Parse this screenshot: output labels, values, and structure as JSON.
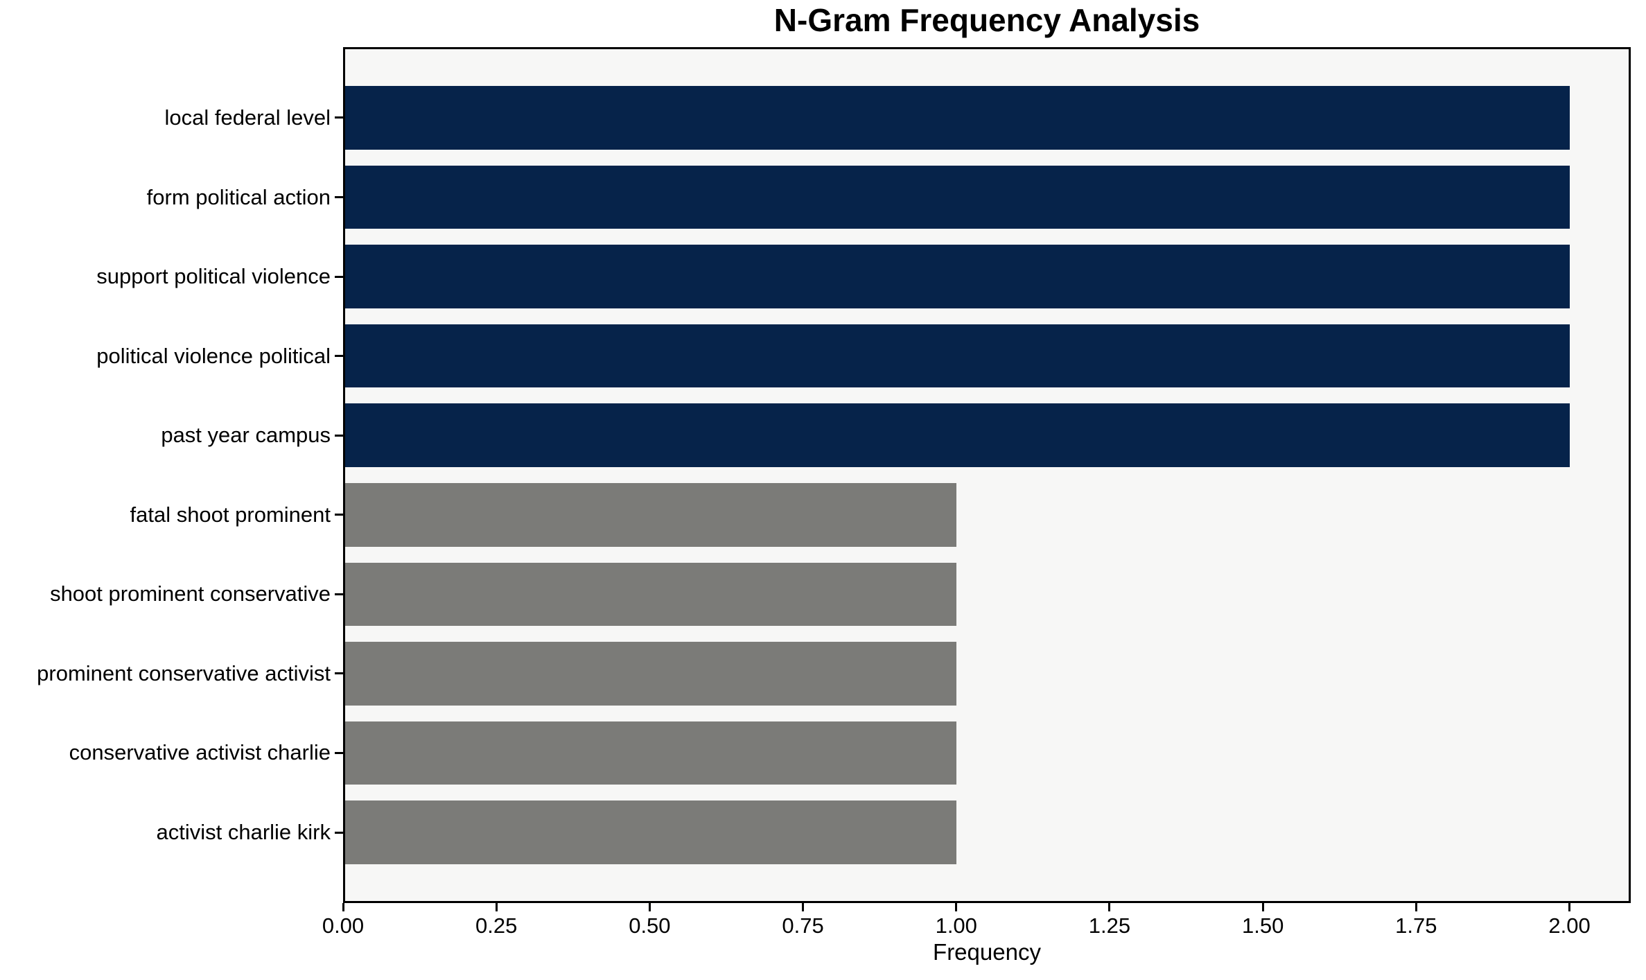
{
  "chart_data": {
    "type": "bar",
    "orientation": "horizontal",
    "title": "N-Gram Frequency Analysis",
    "xlabel": "Frequency",
    "ylabel": "",
    "categories": [
      "local federal level",
      "form political action",
      "support political violence",
      "political violence political",
      "past year campus",
      "fatal shoot prominent",
      "shoot prominent conservative",
      "prominent conservative activist",
      "conservative activist charlie",
      "activist charlie kirk"
    ],
    "values": [
      2,
      2,
      2,
      2,
      2,
      1,
      1,
      1,
      1,
      1
    ],
    "bar_colors": [
      "#06234A",
      "#06234A",
      "#06234A",
      "#06234A",
      "#06234A",
      "#7B7B78",
      "#7B7B78",
      "#7B7B78",
      "#7B7B78",
      "#7B7B78"
    ],
    "xlim": [
      0,
      2.1
    ],
    "xticks": [
      {
        "value": 0.0,
        "label": "0.00"
      },
      {
        "value": 0.25,
        "label": "0.25"
      },
      {
        "value": 0.5,
        "label": "0.50"
      },
      {
        "value": 0.75,
        "label": "0.75"
      },
      {
        "value": 1.0,
        "label": "1.00"
      },
      {
        "value": 1.25,
        "label": "1.25"
      },
      {
        "value": 1.5,
        "label": "1.50"
      },
      {
        "value": 1.75,
        "label": "1.75"
      },
      {
        "value": 2.0,
        "label": "2.00"
      }
    ],
    "bar_height_fraction": 0.8,
    "grid": false,
    "legend": null,
    "colors": {
      "navy": "#06234A",
      "gray": "#7B7B78",
      "plot_background": "#F7F7F6",
      "figure_background": "#FFFFFF",
      "text": "#000000",
      "spine": "#000000"
    }
  }
}
